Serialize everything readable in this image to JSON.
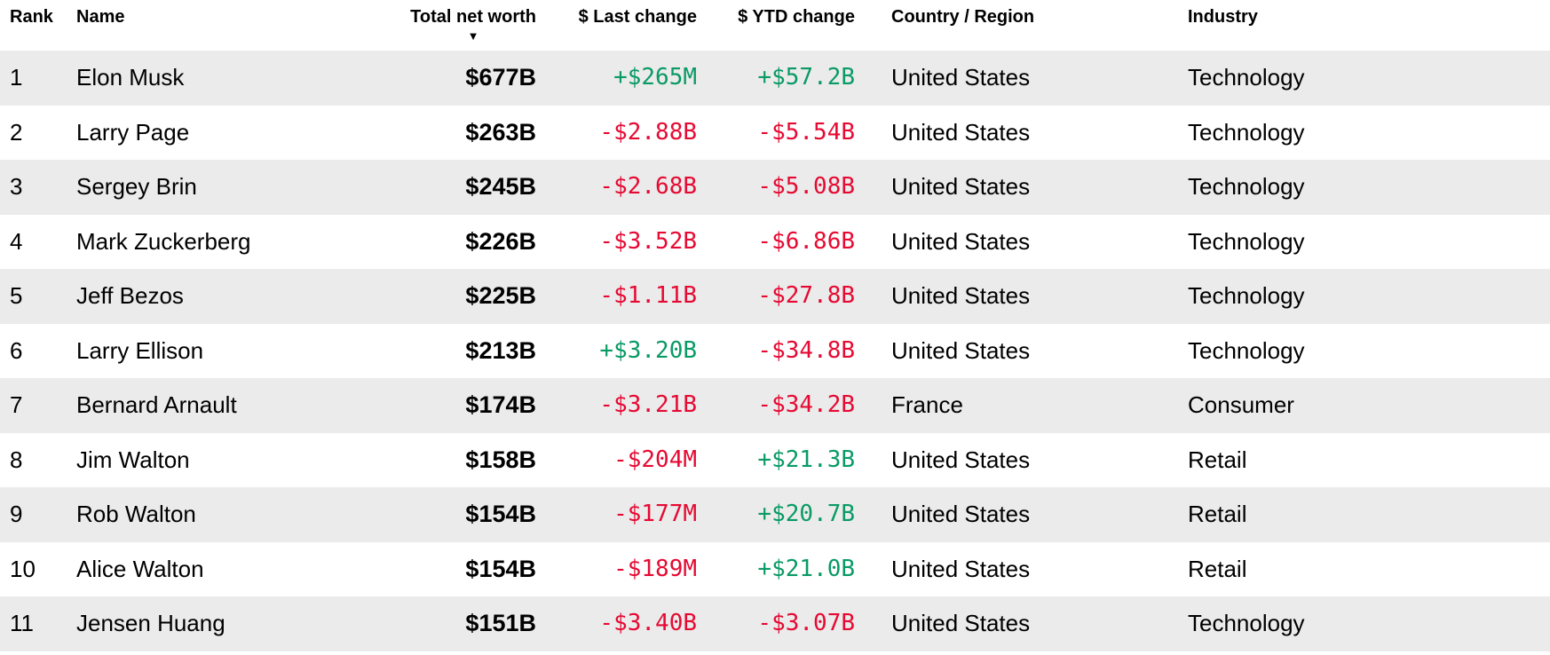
{
  "table": {
    "sort_icon": "▼",
    "columns": [
      {
        "key": "rank",
        "label": "Rank"
      },
      {
        "key": "name",
        "label": "Name"
      },
      {
        "key": "net_worth",
        "label": "Total net worth",
        "sorted": "desc"
      },
      {
        "key": "last_change",
        "label": "$ Last change"
      },
      {
        "key": "ytd_change",
        "label": "$ YTD change"
      },
      {
        "key": "country",
        "label": "Country / Region"
      },
      {
        "key": "industry",
        "label": "Industry"
      }
    ],
    "rows": [
      {
        "rank": "1",
        "name": "Elon Musk",
        "net_worth": "$677B",
        "last_change": "+$265M",
        "last_dir": "up",
        "ytd_change": "+$57.2B",
        "ytd_dir": "up",
        "country": "United States",
        "industry": "Technology"
      },
      {
        "rank": "2",
        "name": "Larry Page",
        "net_worth": "$263B",
        "last_change": "-$2.88B",
        "last_dir": "down",
        "ytd_change": "-$5.54B",
        "ytd_dir": "down",
        "country": "United States",
        "industry": "Technology"
      },
      {
        "rank": "3",
        "name": "Sergey Brin",
        "net_worth": "$245B",
        "last_change": "-$2.68B",
        "last_dir": "down",
        "ytd_change": "-$5.08B",
        "ytd_dir": "down",
        "country": "United States",
        "industry": "Technology"
      },
      {
        "rank": "4",
        "name": "Mark Zuckerberg",
        "net_worth": "$226B",
        "last_change": "-$3.52B",
        "last_dir": "down",
        "ytd_change": "-$6.86B",
        "ytd_dir": "down",
        "country": "United States",
        "industry": "Technology"
      },
      {
        "rank": "5",
        "name": "Jeff Bezos",
        "net_worth": "$225B",
        "last_change": "-$1.11B",
        "last_dir": "down",
        "ytd_change": "-$27.8B",
        "ytd_dir": "down",
        "country": "United States",
        "industry": "Technology"
      },
      {
        "rank": "6",
        "name": "Larry Ellison",
        "net_worth": "$213B",
        "last_change": "+$3.20B",
        "last_dir": "up",
        "ytd_change": "-$34.8B",
        "ytd_dir": "down",
        "country": "United States",
        "industry": "Technology"
      },
      {
        "rank": "7",
        "name": "Bernard Arnault",
        "net_worth": "$174B",
        "last_change": "-$3.21B",
        "last_dir": "down",
        "ytd_change": "-$34.2B",
        "ytd_dir": "down",
        "country": "France",
        "industry": "Consumer"
      },
      {
        "rank": "8",
        "name": "Jim Walton",
        "net_worth": "$158B",
        "last_change": "-$204M",
        "last_dir": "down",
        "ytd_change": "+$21.3B",
        "ytd_dir": "up",
        "country": "United States",
        "industry": "Retail"
      },
      {
        "rank": "9",
        "name": "Rob Walton",
        "net_worth": "$154B",
        "last_change": "-$177M",
        "last_dir": "down",
        "ytd_change": "+$20.7B",
        "ytd_dir": "up",
        "country": "United States",
        "industry": "Retail"
      },
      {
        "rank": "10",
        "name": "Alice Walton",
        "net_worth": "$154B",
        "last_change": "-$189M",
        "last_dir": "down",
        "ytd_change": "+$21.0B",
        "ytd_dir": "up",
        "country": "United States",
        "industry": "Retail"
      },
      {
        "rank": "11",
        "name": "Jensen Huang",
        "net_worth": "$151B",
        "last_change": "-$3.40B",
        "last_dir": "down",
        "ytd_change": "-$3.07B",
        "ytd_dir": "down",
        "country": "United States",
        "industry": "Technology"
      }
    ]
  },
  "colors": {
    "positive": "#0a9a66",
    "negative": "#e60a33",
    "row_alt_bg": "#ebebeb",
    "text": "#000000"
  }
}
